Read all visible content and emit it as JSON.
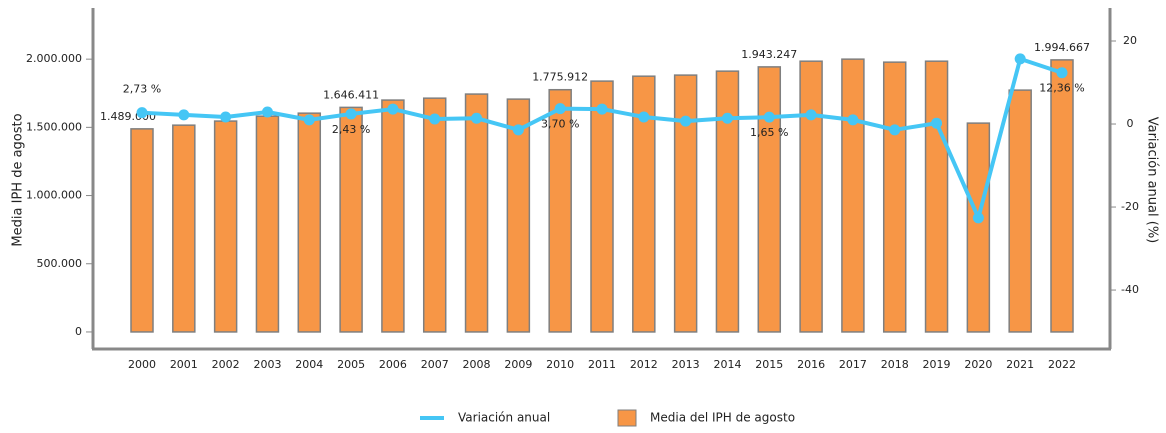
{
  "chart_data": {
    "type": "bar-line",
    "y_label": "Media IPH de agosto",
    "y2_label": "Variación anual (%)",
    "categories": [
      "2000",
      "2001",
      "2002",
      "2003",
      "2004",
      "2005",
      "2006",
      "2007",
      "2008",
      "2009",
      "2010",
      "2011",
      "2012",
      "2013",
      "2014",
      "2015",
      "2016",
      "2017",
      "2018",
      "2019",
      "2020",
      "2021",
      "2022"
    ],
    "series": [
      {
        "name": "Variación anual",
        "type": "line",
        "axis": "y2",
        "color": "#45c6f5",
        "values": [
          2.73,
          2.2,
          1.7,
          2.9,
          1.0,
          2.43,
          3.6,
          1.2,
          1.4,
          -1.4,
          3.7,
          3.6,
          1.7,
          0.7,
          1.4,
          1.65,
          2.2,
          1.0,
          -1.4,
          0.2,
          -22.6,
          15.7,
          12.36
        ],
        "value_labels": [
          "2,73 %",
          null,
          null,
          null,
          null,
          "2,43 %",
          null,
          null,
          null,
          null,
          "3,70 %",
          null,
          null,
          null,
          null,
          "1,65 %",
          null,
          null,
          null,
          null,
          null,
          null,
          "12,36 %"
        ]
      },
      {
        "name": "Media del IPH de agosto",
        "type": "bar",
        "axis": "y",
        "color": "#f79646",
        "values": [
          1489000,
          1516000,
          1546000,
          1582000,
          1604000,
          1646411,
          1700000,
          1714000,
          1744000,
          1707000,
          1775912,
          1839000,
          1875000,
          1883000,
          1912000,
          1943247,
          1985000,
          2000000,
          1978000,
          1985000,
          1531000,
          1773000,
          1994667
        ],
        "value_labels": [
          "1.489.000",
          null,
          null,
          null,
          null,
          "1.646.411",
          null,
          null,
          null,
          null,
          "1.775.912",
          null,
          null,
          null,
          null,
          "1.943.247",
          null,
          null,
          null,
          null,
          null,
          null,
          "1.994.667"
        ]
      }
    ],
    "ylim": [
      -125000,
      2375000
    ],
    "yticks": [
      0,
      {
        "value": 500000,
        "label": "500.000"
      },
      {
        "value": 1000000,
        "label": "1.000.000"
      },
      {
        "value": 1500000,
        "label": "1.500.000"
      },
      {
        "value": 2000000,
        "label": "2.000.000"
      }
    ],
    "y2lim": [
      -54.2,
      27.95
    ],
    "y2ticks": [
      -40,
      -20,
      0,
      20
    ],
    "legend": "bottom"
  }
}
